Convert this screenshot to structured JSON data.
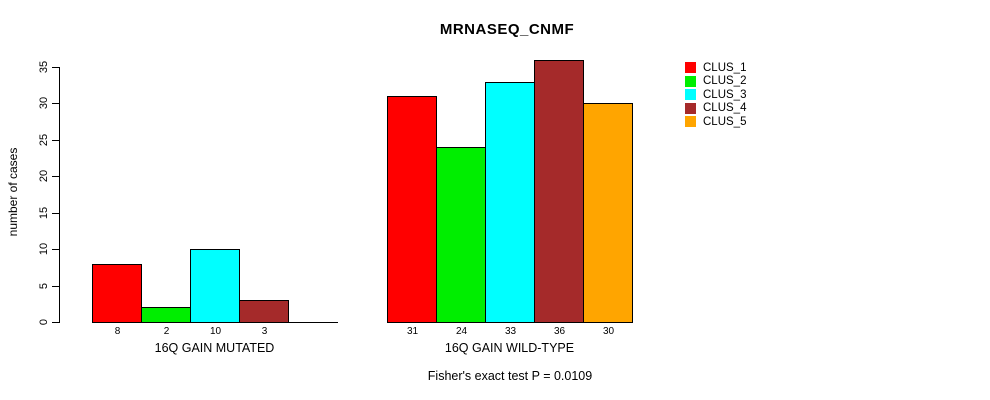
{
  "title": "MRNASEQ_CNMF",
  "ylabel": "number of cases",
  "footnote": "Fisher's exact test P = 0.0109",
  "legend": {
    "items": [
      {
        "label": "CLUS_1",
        "color": "#FF0000"
      },
      {
        "label": "CLUS_2",
        "color": "#00EE00"
      },
      {
        "label": "CLUS_3",
        "color": "#00FFFF"
      },
      {
        "label": "CLUS_4",
        "color": "#A52A2A"
      },
      {
        "label": "CLUS_5",
        "color": "#FFA500"
      }
    ]
  },
  "chart_data": {
    "type": "bar",
    "title": "MRNASEQ_CNMF",
    "ylabel": "number of cases",
    "xlabel": "",
    "ylim": [
      0,
      35
    ],
    "yticks": [
      0,
      5,
      10,
      15,
      20,
      25,
      30,
      35
    ],
    "grid": false,
    "legend_position": "right",
    "categories": [
      "16Q GAIN MUTATED",
      "16Q GAIN WILD-TYPE"
    ],
    "series": [
      {
        "name": "CLUS_1",
        "color": "#FF0000",
        "values": [
          8,
          31
        ]
      },
      {
        "name": "CLUS_2",
        "color": "#00EE00",
        "values": [
          2,
          24
        ]
      },
      {
        "name": "CLUS_3",
        "color": "#00FFFF",
        "values": [
          10,
          33
        ]
      },
      {
        "name": "CLUS_4",
        "color": "#A52A2A",
        "values": [
          3,
          36
        ]
      },
      {
        "name": "CLUS_5",
        "color": "#FFA500",
        "values": [
          0,
          30
        ]
      }
    ],
    "groups": [
      {
        "label": "16Q GAIN MUTATED",
        "values": [
          8,
          2,
          10,
          3,
          0
        ],
        "shown_bar_labels": [
          "8",
          "2",
          "10",
          "3"
        ]
      },
      {
        "label": "16Q GAIN WILD-TYPE",
        "values": [
          31,
          24,
          33,
          36,
          30
        ],
        "shown_bar_labels": [
          "31",
          "24",
          "33",
          "36",
          "30"
        ]
      }
    ],
    "annotation": "Fisher's exact test P = 0.0109"
  }
}
